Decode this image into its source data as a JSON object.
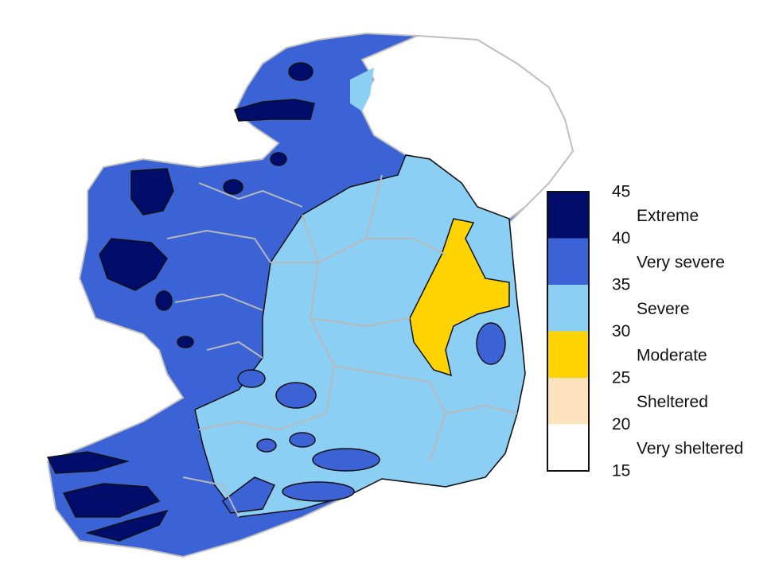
{
  "legend": {
    "ticks": [
      45,
      40,
      35,
      30,
      25,
      20,
      15
    ],
    "classes": [
      {
        "label": "Extreme",
        "color": "#000d6b"
      },
      {
        "label": "Very severe",
        "color": "#3b63d6"
      },
      {
        "label": "Severe",
        "color": "#8ccff5"
      },
      {
        "label": "Moderate",
        "color": "#ffd300"
      },
      {
        "label": "Sheltered",
        "color": "#fde3bd"
      },
      {
        "label": "Very sheltered",
        "color": "#ffffff"
      }
    ]
  }
}
